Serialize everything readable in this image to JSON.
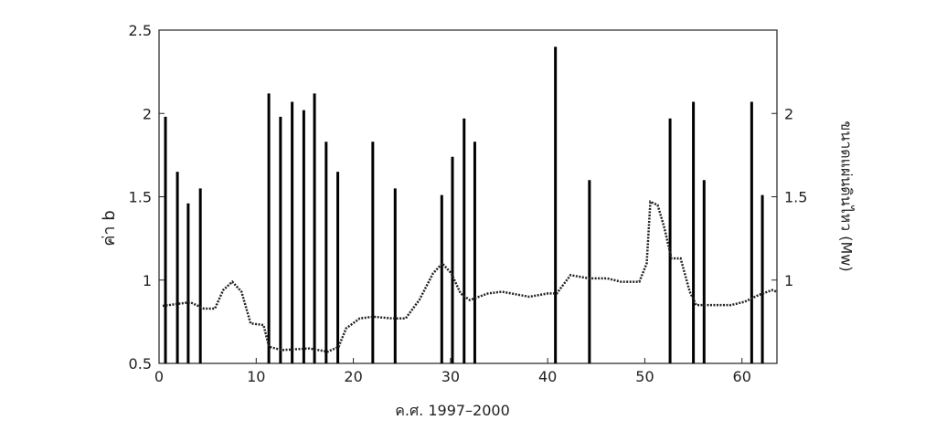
{
  "chart_data": {
    "type": "line",
    "xlabel": "ค.ศ. 1997–2000",
    "ylabel": "ค่า b",
    "y2label": "ขนาดแผ่นดินไหว (Mw)",
    "xlim": [
      0,
      63.6
    ],
    "xticks": [
      0,
      10,
      20,
      30,
      40,
      50,
      60
    ],
    "ylim": [
      0.5,
      2.5
    ],
    "yticks": [
      0.5,
      1,
      1.5,
      2,
      2.5
    ],
    "y2lim": [
      0.5,
      2.5
    ],
    "y2ticks": [
      1,
      1.5,
      2
    ],
    "b_value": {
      "color": "#222222",
      "x": [
        0.38,
        1.79,
        3.21,
        4.62,
        5.75,
        6.6,
        7.55,
        8.49,
        9.43,
        10.75,
        11.32,
        12.64,
        15.47,
        17.36,
        18.49,
        19.25,
        20.66,
        22.08,
        23.96,
        25.38,
        26.79,
        28.21,
        29.15,
        30.09,
        31.04,
        31.98,
        33.87,
        35.28,
        37.17,
        38.11,
        40.0,
        40.94,
        42.36,
        44.25,
        46.13,
        47.55,
        49.43,
        50.19,
        50.57,
        51.32,
        51.98,
        52.74,
        53.68,
        54.62,
        55.28,
        58.87,
        60.28,
        61.7,
        63.11,
        63.58
      ],
      "values": [
        0.845,
        0.856,
        0.867,
        0.829,
        0.829,
        0.94,
        0.99,
        0.93,
        0.74,
        0.73,
        0.6,
        0.58,
        0.59,
        0.57,
        0.6,
        0.71,
        0.77,
        0.78,
        0.77,
        0.77,
        0.88,
        1.04,
        1.1,
        1.04,
        0.92,
        0.88,
        0.92,
        0.93,
        0.91,
        0.9,
        0.92,
        0.92,
        1.03,
        1.01,
        1.01,
        0.99,
        0.99,
        1.1,
        1.47,
        1.45,
        1.32,
        1.13,
        1.13,
        0.93,
        0.85,
        0.85,
        0.87,
        0.91,
        0.94,
        0.93
      ]
    },
    "magnitude": {
      "color": "#000000",
      "axis": "y2",
      "x": [
        0.66,
        1.89,
        3.0,
        4.25,
        11.3,
        12.5,
        13.7,
        14.9,
        16.0,
        17.2,
        18.4,
        22.0,
        24.3,
        29.1,
        30.2,
        31.4,
        32.5,
        40.8,
        44.3,
        52.6,
        55.0,
        56.1,
        61.0,
        62.1
      ],
      "values": [
        1.98,
        1.65,
        1.46,
        1.55,
        2.12,
        1.98,
        2.07,
        2.02,
        2.12,
        1.83,
        1.65,
        1.83,
        1.55,
        1.51,
        1.74,
        1.97,
        1.83,
        2.4,
        1.6,
        1.97,
        2.07,
        1.6,
        2.07,
        1.51
      ]
    }
  }
}
